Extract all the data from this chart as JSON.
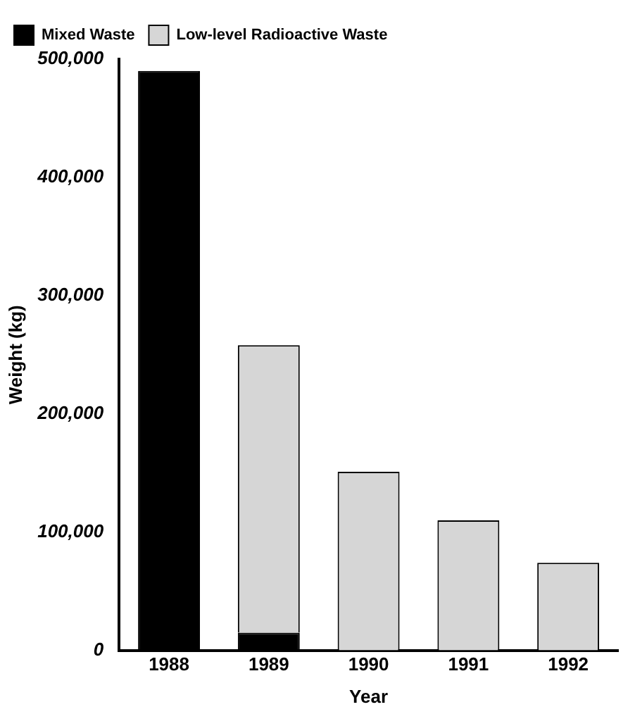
{
  "chart_data": {
    "type": "bar",
    "stacked": true,
    "xlabel": "Year",
    "ylabel": "Weight (kg)",
    "categories": [
      "1988",
      "1989",
      "1990",
      "1991",
      "1992"
    ],
    "series": [
      {
        "name": "Mixed Waste",
        "color": "#000000",
        "values": [
          490000,
          15000,
          0,
          0,
          0
        ]
      },
      {
        "name": "Low-level Radioactive Waste",
        "color": "#d6d6d6",
        "values": [
          0,
          243000,
          151000,
          110000,
          74000
        ]
      }
    ],
    "ylim": [
      0,
      500000
    ],
    "yticks": [
      {
        "value": 0,
        "label": "0"
      },
      {
        "value": 100000,
        "label": "100,000"
      },
      {
        "value": 200000,
        "label": "200,000"
      },
      {
        "value": 300000,
        "label": "300,000"
      },
      {
        "value": 400000,
        "label": "400,000"
      },
      {
        "value": 500000,
        "label": "500,000"
      }
    ],
    "grid": false,
    "legend": "top left"
  }
}
